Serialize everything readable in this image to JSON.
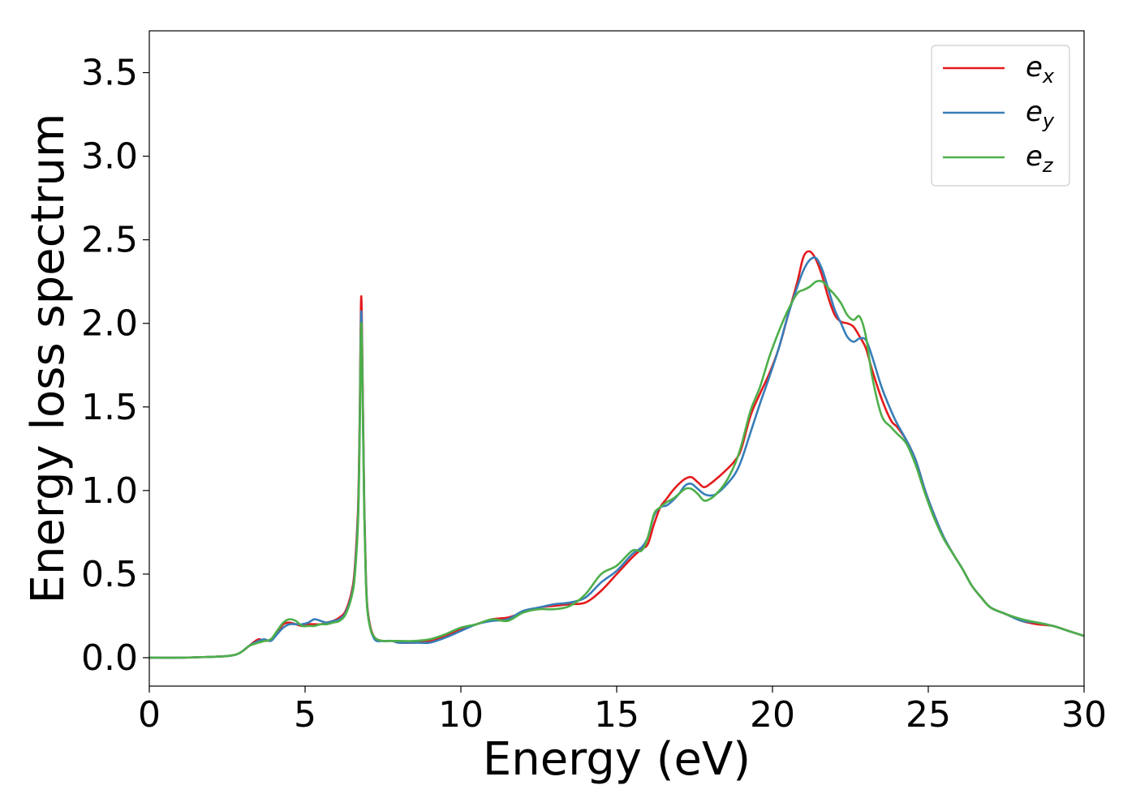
{
  "chart_data": {
    "type": "line",
    "title": "",
    "xlabel": "Energy (eV)",
    "ylabel": "Energy loss spectrum",
    "xlim": [
      0,
      30
    ],
    "ylim": [
      -0.17,
      3.75
    ],
    "x_ticks": [
      0,
      5,
      10,
      15,
      20,
      25,
      30
    ],
    "x_tick_labels": [
      "0",
      "5",
      "10",
      "15",
      "20",
      "25",
      "30"
    ],
    "y_ticks": [
      0.0,
      0.5,
      1.0,
      1.5,
      2.0,
      2.5,
      3.0,
      3.5
    ],
    "y_tick_labels": [
      "0.0",
      "0.5",
      "1.0",
      "1.5",
      "2.0",
      "2.5",
      "3.0",
      "3.5"
    ],
    "grid": false,
    "legend_position": "top-right",
    "series": [
      {
        "name": "e",
        "sub": "x",
        "color": "#e41a1c",
        "x": [
          0,
          1,
          2,
          2.5,
          2.8,
          3.0,
          3.2,
          3.5,
          3.7,
          3.9,
          4.1,
          4.3,
          4.5,
          4.7,
          4.9,
          5.1,
          5.3,
          5.5,
          5.7,
          5.9,
          6.1,
          6.3,
          6.5,
          6.6,
          6.7,
          6.75,
          6.8,
          6.85,
          6.9,
          6.95,
          7.0,
          7.1,
          7.2,
          7.3,
          7.5,
          7.8,
          8.0,
          8.5,
          9.0,
          9.5,
          10.0,
          10.5,
          11.0,
          11.5,
          12.0,
          12.5,
          13.0,
          13.5,
          14.0,
          14.5,
          15.0,
          15.5,
          15.8,
          16.0,
          16.2,
          16.4,
          16.6,
          16.8,
          17.0,
          17.2,
          17.4,
          17.6,
          17.8,
          18.0,
          18.2,
          18.5,
          18.8,
          19.0,
          19.3,
          19.6,
          19.9,
          20.2,
          20.5,
          20.8,
          21.0,
          21.2,
          21.4,
          21.6,
          21.8,
          22.0,
          22.2,
          22.4,
          22.6,
          22.8,
          23.0,
          23.2,
          23.5,
          23.8,
          24.0,
          24.3,
          24.6,
          24.9,
          25.2,
          25.5,
          25.8,
          26.1,
          26.4,
          26.7,
          27.0,
          27.5,
          28.0,
          28.5,
          29.0,
          29.5,
          30.0
        ],
        "y": [
          0,
          0,
          0.005,
          0.01,
          0.02,
          0.04,
          0.07,
          0.11,
          0.1,
          0.11,
          0.15,
          0.2,
          0.21,
          0.2,
          0.19,
          0.2,
          0.2,
          0.2,
          0.21,
          0.22,
          0.24,
          0.28,
          0.4,
          0.55,
          0.9,
          1.4,
          2.16,
          1.6,
          0.9,
          0.5,
          0.3,
          0.18,
          0.13,
          0.11,
          0.1,
          0.1,
          0.09,
          0.09,
          0.1,
          0.13,
          0.17,
          0.2,
          0.23,
          0.24,
          0.27,
          0.3,
          0.31,
          0.32,
          0.33,
          0.4,
          0.5,
          0.6,
          0.65,
          0.68,
          0.8,
          0.9,
          0.95,
          1.0,
          1.04,
          1.07,
          1.08,
          1.05,
          1.02,
          1.04,
          1.07,
          1.12,
          1.18,
          1.25,
          1.45,
          1.58,
          1.7,
          1.85,
          2.05,
          2.25,
          2.4,
          2.43,
          2.38,
          2.28,
          2.15,
          2.05,
          2.01,
          2.0,
          1.98,
          1.92,
          1.85,
          1.72,
          1.55,
          1.42,
          1.38,
          1.3,
          1.18,
          1.0,
          0.85,
          0.72,
          0.62,
          0.53,
          0.43,
          0.36,
          0.3,
          0.26,
          0.22,
          0.2,
          0.19,
          0.16,
          0.13
        ]
      },
      {
        "name": "e",
        "sub": "y",
        "color": "#377eb8",
        "x": [
          0,
          1,
          2,
          2.5,
          2.8,
          3.0,
          3.2,
          3.5,
          3.7,
          3.9,
          4.1,
          4.3,
          4.5,
          4.7,
          4.9,
          5.1,
          5.3,
          5.5,
          5.7,
          5.9,
          6.1,
          6.3,
          6.5,
          6.6,
          6.7,
          6.75,
          6.8,
          6.85,
          6.9,
          6.95,
          7.0,
          7.1,
          7.2,
          7.3,
          7.5,
          7.8,
          8.0,
          8.5,
          9.0,
          9.5,
          10.0,
          10.5,
          11.0,
          11.5,
          12.0,
          12.5,
          13.0,
          13.5,
          14.0,
          14.5,
          15.0,
          15.5,
          15.8,
          16.0,
          16.2,
          16.4,
          16.6,
          16.8,
          17.0,
          17.2,
          17.4,
          17.6,
          17.8,
          18.0,
          18.2,
          18.5,
          18.8,
          19.0,
          19.3,
          19.6,
          19.9,
          20.2,
          20.5,
          20.8,
          21.0,
          21.2,
          21.4,
          21.6,
          21.8,
          22.0,
          22.2,
          22.4,
          22.6,
          22.8,
          23.0,
          23.2,
          23.5,
          23.8,
          24.0,
          24.3,
          24.6,
          24.9,
          25.2,
          25.5,
          25.8,
          26.1,
          26.4,
          26.7,
          27.0,
          27.5,
          28.0,
          28.5,
          29.0,
          29.5,
          30.0
        ],
        "y": [
          0,
          0,
          0.005,
          0.01,
          0.02,
          0.04,
          0.07,
          0.1,
          0.11,
          0.1,
          0.14,
          0.18,
          0.2,
          0.2,
          0.2,
          0.21,
          0.23,
          0.22,
          0.21,
          0.22,
          0.23,
          0.27,
          0.38,
          0.52,
          0.85,
          1.35,
          2.07,
          1.55,
          0.88,
          0.48,
          0.29,
          0.17,
          0.12,
          0.1,
          0.1,
          0.1,
          0.09,
          0.09,
          0.09,
          0.12,
          0.16,
          0.2,
          0.22,
          0.23,
          0.28,
          0.3,
          0.32,
          0.33,
          0.36,
          0.45,
          0.52,
          0.62,
          0.66,
          0.72,
          0.85,
          0.9,
          0.91,
          0.94,
          0.98,
          1.03,
          1.04,
          1.01,
          0.98,
          0.97,
          0.98,
          1.03,
          1.1,
          1.18,
          1.35,
          1.52,
          1.68,
          1.85,
          2.05,
          2.22,
          2.32,
          2.38,
          2.39,
          2.32,
          2.2,
          2.08,
          2.0,
          1.92,
          1.89,
          1.91,
          1.9,
          1.8,
          1.62,
          1.48,
          1.4,
          1.3,
          1.18,
          1.0,
          0.85,
          0.72,
          0.62,
          0.53,
          0.43,
          0.36,
          0.3,
          0.26,
          0.22,
          0.21,
          0.19,
          0.16,
          0.13
        ]
      },
      {
        "name": "e",
        "sub": "z",
        "color": "#4daf4a",
        "x": [
          0,
          1,
          2,
          2.5,
          2.8,
          3.0,
          3.2,
          3.5,
          3.7,
          3.9,
          4.1,
          4.3,
          4.5,
          4.7,
          4.9,
          5.1,
          5.3,
          5.5,
          5.7,
          5.9,
          6.1,
          6.3,
          6.5,
          6.6,
          6.7,
          6.75,
          6.8,
          6.85,
          6.9,
          6.95,
          7.0,
          7.1,
          7.2,
          7.3,
          7.5,
          7.8,
          8.0,
          8.5,
          9.0,
          9.5,
          10.0,
          10.5,
          11.0,
          11.5,
          12.0,
          12.5,
          13.0,
          13.5,
          14.0,
          14.5,
          15.0,
          15.5,
          15.8,
          16.0,
          16.2,
          16.4,
          16.6,
          16.8,
          17.0,
          17.2,
          17.4,
          17.6,
          17.8,
          18.0,
          18.2,
          18.5,
          18.8,
          19.0,
          19.3,
          19.6,
          19.9,
          20.2,
          20.5,
          20.8,
          21.0,
          21.2,
          21.4,
          21.6,
          21.8,
          22.0,
          22.2,
          22.4,
          22.6,
          22.8,
          23.0,
          23.2,
          23.5,
          23.8,
          24.0,
          24.3,
          24.6,
          24.9,
          25.2,
          25.5,
          25.8,
          26.1,
          26.4,
          26.7,
          27.0,
          27.5,
          28.0,
          28.5,
          29.0,
          29.5,
          30.0
        ],
        "y": [
          0,
          0,
          0.005,
          0.01,
          0.02,
          0.04,
          0.07,
          0.09,
          0.1,
          0.11,
          0.16,
          0.21,
          0.23,
          0.22,
          0.19,
          0.19,
          0.19,
          0.2,
          0.2,
          0.21,
          0.22,
          0.26,
          0.37,
          0.5,
          0.82,
          1.3,
          2.0,
          1.5,
          0.85,
          0.46,
          0.28,
          0.17,
          0.13,
          0.11,
          0.1,
          0.1,
          0.1,
          0.1,
          0.11,
          0.14,
          0.18,
          0.2,
          0.23,
          0.22,
          0.27,
          0.29,
          0.29,
          0.31,
          0.38,
          0.5,
          0.55,
          0.64,
          0.64,
          0.72,
          0.86,
          0.9,
          0.93,
          0.95,
          0.98,
          1.01,
          1.01,
          0.98,
          0.94,
          0.95,
          0.98,
          1.05,
          1.16,
          1.27,
          1.48,
          1.62,
          1.8,
          1.95,
          2.08,
          2.18,
          2.2,
          2.22,
          2.25,
          2.25,
          2.21,
          2.17,
          2.12,
          2.05,
          2.02,
          2.04,
          1.92,
          1.68,
          1.45,
          1.38,
          1.34,
          1.28,
          1.15,
          0.98,
          0.83,
          0.71,
          0.62,
          0.53,
          0.43,
          0.36,
          0.3,
          0.26,
          0.23,
          0.21,
          0.19,
          0.16,
          0.13
        ]
      }
    ]
  }
}
